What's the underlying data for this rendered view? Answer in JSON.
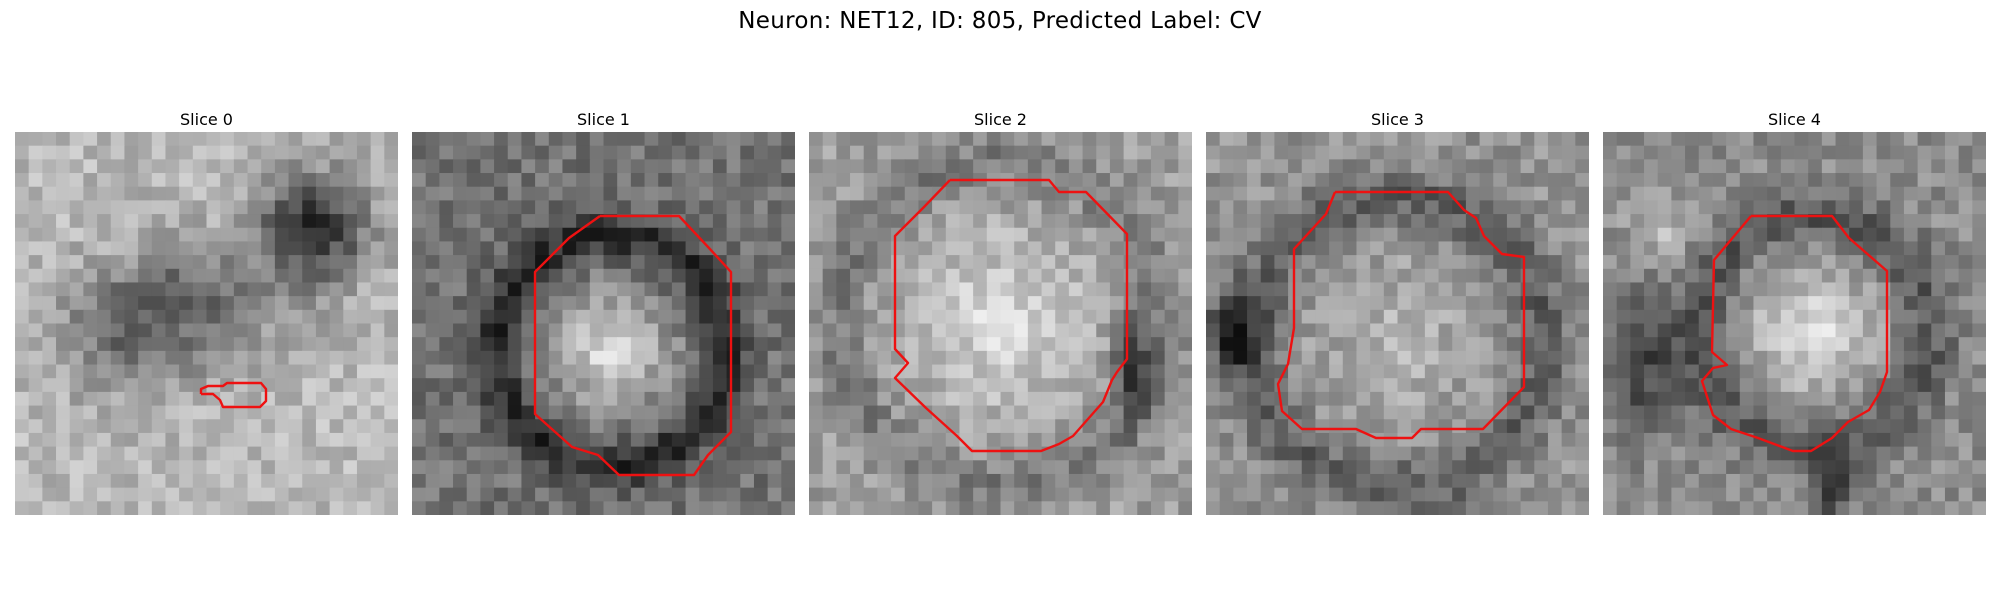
{
  "figure": {
    "title": "Neuron: NET12, ID: 805, Predicted Label: CV"
  },
  "panels": [
    {
      "title": "Slice 0",
      "shade_seed": 11,
      "colormap": "grayscale",
      "contour_color": "#ee1111"
    },
    {
      "title": "Slice 1",
      "shade_seed": 23,
      "colormap": "grayscale",
      "contour_color": "#ee1111"
    },
    {
      "title": "Slice 2",
      "shade_seed": 37,
      "colormap": "grayscale",
      "contour_color": "#ee1111"
    },
    {
      "title": "Slice 3",
      "shade_seed": 41,
      "colormap": "grayscale",
      "contour_color": "#ee1111"
    },
    {
      "title": "Slice 4",
      "shade_seed": 53,
      "colormap": "grayscale",
      "contour_color": "#ee1111"
    }
  ]
}
